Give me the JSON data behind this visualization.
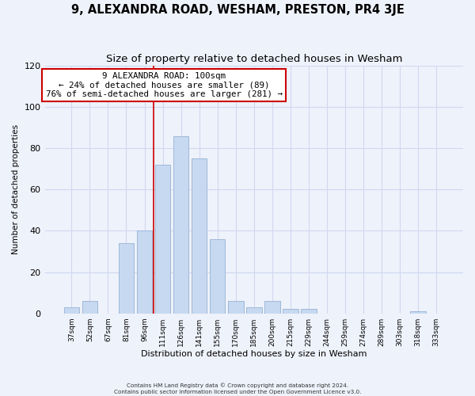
{
  "title": "9, ALEXANDRA ROAD, WESHAM, PRESTON, PR4 3JE",
  "subtitle": "Size of property relative to detached houses in Wesham",
  "xlabel": "Distribution of detached houses by size in Wesham",
  "ylabel": "Number of detached properties",
  "categories": [
    "37sqm",
    "52sqm",
    "67sqm",
    "81sqm",
    "96sqm",
    "111sqm",
    "126sqm",
    "141sqm",
    "155sqm",
    "170sqm",
    "185sqm",
    "200sqm",
    "215sqm",
    "229sqm",
    "244sqm",
    "259sqm",
    "274sqm",
    "289sqm",
    "303sqm",
    "318sqm",
    "333sqm"
  ],
  "values": [
    3,
    6,
    0,
    34,
    40,
    72,
    86,
    75,
    36,
    6,
    3,
    6,
    2,
    2,
    0,
    0,
    0,
    0,
    0,
    1,
    0
  ],
  "bar_color": "#c6d9f0",
  "bar_edge_color": "#a0b8d8",
  "vline_color": "#cc0000",
  "annotation_title": "9 ALEXANDRA ROAD: 100sqm",
  "annotation_line1": "← 24% of detached houses are smaller (89)",
  "annotation_line2": "76% of semi-detached houses are larger (281) →",
  "annotation_box_color": "#ffffff",
  "annotation_box_edge": "#cc0000",
  "ylim": [
    0,
    120
  ],
  "yticks": [
    0,
    20,
    40,
    60,
    80,
    100,
    120
  ],
  "footer1": "Contains HM Land Registry data © Crown copyright and database right 2024.",
  "footer2": "Contains public sector information licensed under the Open Government Licence v3.0.",
  "background_color": "#eef2fb",
  "title_fontsize": 10.5,
  "subtitle_fontsize": 9.5,
  "grid_color": "#d0d8f0"
}
